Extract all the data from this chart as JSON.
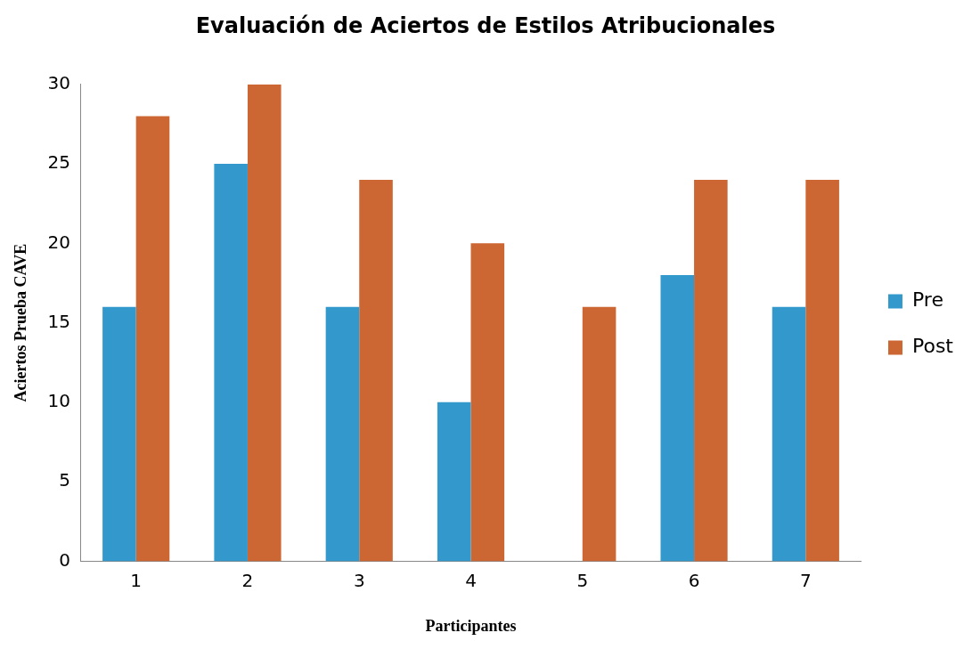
{
  "chart_data": {
    "type": "bar",
    "title": "Evaluación de Aciertos de Estilos Atribucionales",
    "xlabel": "Participantes",
    "ylabel": "Aciertos Prueba CAVE",
    "categories": [
      "1",
      "2",
      "3",
      "4",
      "5",
      "6",
      "7"
    ],
    "series": [
      {
        "name": "Pre",
        "color": "#3399cc",
        "values": [
          16,
          25,
          16,
          10,
          0,
          18,
          16
        ]
      },
      {
        "name": "Post",
        "color": "#cc6633",
        "values": [
          28,
          30,
          24,
          20,
          16,
          24,
          24
        ]
      }
    ],
    "ylim": [
      0,
      30
    ],
    "yticks": [
      0,
      5,
      10,
      15,
      20,
      25,
      30
    ],
    "grid": false,
    "legend": "right"
  }
}
